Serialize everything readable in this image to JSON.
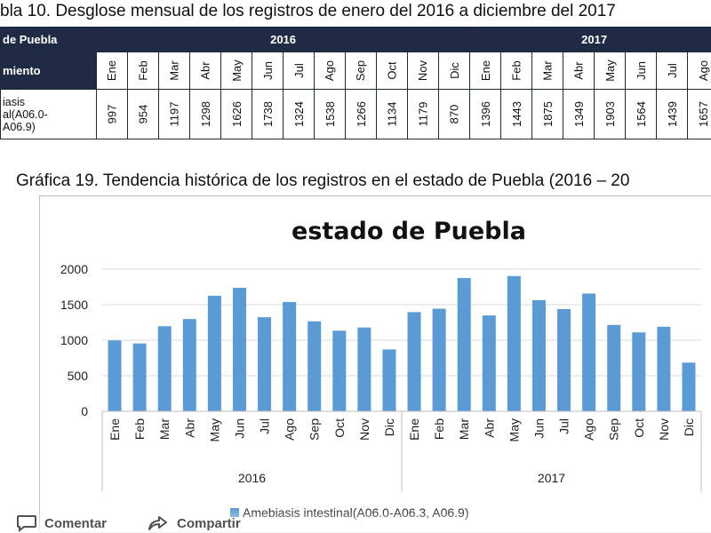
{
  "table": {
    "title": "bla 10. Desglose mensual de los registros de enero del 2016 a diciembre del 2017",
    "state_header": "de Puebla",
    "year_2016": "2016",
    "year_2017": "2017",
    "row_label": "miento",
    "disease_label_line1": "iasis",
    "disease_label_line2": "al(A06.0-",
    "disease_label_line3": "A06.9)",
    "months": [
      "Ene",
      "Feb",
      "Mar",
      "Abr",
      "May",
      "Jun",
      "Jul",
      "Ago",
      "Sep",
      "Oct",
      "Nov",
      "Dic",
      "Ene",
      "Feb",
      "Mar",
      "Abr",
      "May",
      "Jun",
      "Jul",
      "Ago"
    ],
    "values": [
      "997",
      "954",
      "1197",
      "1298",
      "1626",
      "1738",
      "1324",
      "1538",
      "1266",
      "1134",
      "1179",
      "870",
      "1396",
      "1443",
      "1875",
      "1349",
      "1903",
      "1564",
      "1439",
      "1657"
    ]
  },
  "chart_caption": "Gráfica 19. Tendencia histórica de los registros en el estado de Puebla (2016 – 20",
  "chart_data": {
    "type": "bar",
    "title": "estado de Puebla",
    "xlabel": "",
    "ylabel": "",
    "ylim": [
      0,
      2000
    ],
    "yticks": [
      "0",
      "500",
      "1000",
      "1500",
      "2000"
    ],
    "grid": true,
    "legend_position": "bottom",
    "bar_color": "#5b9bd5",
    "categories": [
      "Ene",
      "Feb",
      "Mar",
      "Abr",
      "May",
      "Jun",
      "Jul",
      "Ago",
      "Sep",
      "Oct",
      "Nov",
      "Dic",
      "Ene",
      "Feb",
      "Mar",
      "Abr",
      "May",
      "Jun",
      "Jul",
      "Ago",
      "Sep",
      "Oct",
      "Nov",
      "Dic"
    ],
    "groups": [
      "2016",
      "2017"
    ],
    "series": [
      {
        "name": "Amebiasis intestinal(A06.0-A06.3, A06.9)",
        "values": [
          997,
          954,
          1197,
          1298,
          1626,
          1738,
          1324,
          1538,
          1266,
          1134,
          1179,
          870,
          1396,
          1443,
          1875,
          1349,
          1903,
          1564,
          1439,
          1657,
          1215,
          1110,
          1190,
          685
        ]
      }
    ]
  },
  "actions": {
    "comment_label": "Comentar",
    "share_label": "Compartir"
  }
}
